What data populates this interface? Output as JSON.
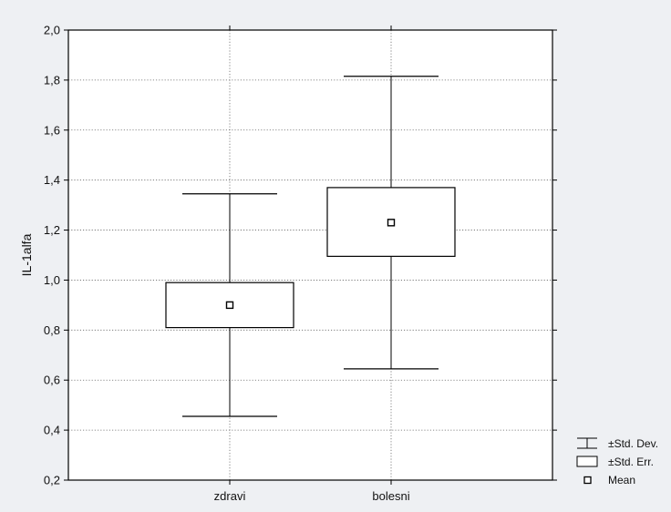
{
  "chart_data": {
    "type": "box",
    "title": "",
    "ylabel": "IL-1alfa",
    "xlabel": "",
    "categories": [
      "zdravi",
      "bolesni"
    ],
    "series": [
      {
        "category": "zdravi",
        "mean": 0.9,
        "se_low": 0.81,
        "se_high": 0.99,
        "sd_low": 0.455,
        "sd_high": 1.345
      },
      {
        "category": "bolesni",
        "mean": 1.23,
        "se_low": 1.095,
        "se_high": 1.37,
        "sd_low": 0.645,
        "sd_high": 1.815
      }
    ],
    "ylim": [
      0.2,
      2.0
    ],
    "yticks": [
      "0,2",
      "0,4",
      "0,6",
      "0,8",
      "1,0",
      "1,2",
      "1,4",
      "1,6",
      "1,8",
      "2,0"
    ],
    "ytick_values": [
      0.2,
      0.4,
      0.6,
      0.8,
      1.0,
      1.2,
      1.4,
      1.6,
      1.8,
      2.0
    ],
    "grid": true,
    "legend_position": "bottom-right",
    "legend": [
      {
        "symbol": "whisker",
        "label": "±Std. Dev."
      },
      {
        "symbol": "box",
        "label": "±Std. Err."
      },
      {
        "symbol": "square",
        "label": "Mean"
      }
    ],
    "colors": {
      "background": "#eef0f3",
      "plot_background": "#ffffff",
      "line": "#000000",
      "grid": "#666666"
    }
  }
}
